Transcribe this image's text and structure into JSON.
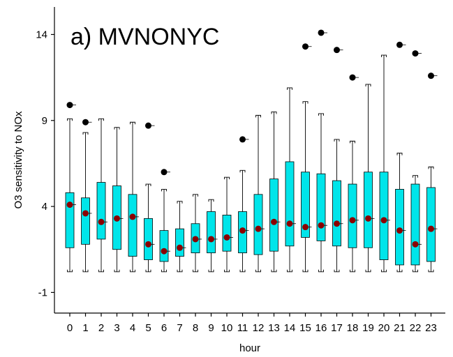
{
  "chart_data": {
    "type": "box",
    "title": "a) MVNONYC",
    "xlabel": "hour",
    "ylabel": "O3 sensitivity to NOx",
    "ylim": [
      -2.2,
      15.6
    ],
    "yticks": [
      -1,
      4,
      9,
      14
    ],
    "categories": [
      "0",
      "1",
      "2",
      "3",
      "4",
      "5",
      "6",
      "7",
      "8",
      "9",
      "10",
      "11",
      "12",
      "13",
      "14",
      "15",
      "16",
      "17",
      "18",
      "19",
      "20",
      "21",
      "22",
      "23"
    ],
    "whisker_low": [
      0.2,
      0.2,
      0.2,
      0.2,
      0.2,
      0.2,
      0.2,
      0.2,
      0.2,
      0.2,
      0.2,
      0.2,
      0.2,
      0.2,
      0.2,
      0.2,
      0.2,
      0.2,
      0.2,
      0.2,
      0.2,
      0.2,
      0.2,
      0.2
    ],
    "q1": [
      1.6,
      1.8,
      2.1,
      1.5,
      1.1,
      0.9,
      0.8,
      1.1,
      1.3,
      1.3,
      1.4,
      1.3,
      1.2,
      1.4,
      1.7,
      2.2,
      2.0,
      1.7,
      1.6,
      1.6,
      0.9,
      0.6,
      0.6,
      0.8
    ],
    "median": [
      4.1,
      3.6,
      3.1,
      3.3,
      3.4,
      1.8,
      1.4,
      1.6,
      2.1,
      2.1,
      2.2,
      2.6,
      2.7,
      3.1,
      3.0,
      2.8,
      2.9,
      3.0,
      3.2,
      3.3,
      3.2,
      2.6,
      1.8,
      2.7
    ],
    "q3": [
      4.8,
      4.5,
      5.4,
      5.2,
      4.7,
      3.3,
      2.6,
      2.7,
      3.0,
      3.7,
      3.5,
      3.7,
      4.7,
      5.6,
      6.6,
      6.0,
      5.9,
      5.5,
      5.3,
      6.0,
      6.0,
      5.0,
      5.3,
      5.1
    ],
    "whisker_high": [
      9.1,
      8.3,
      9.1,
      8.6,
      8.9,
      5.3,
      5.0,
      4.3,
      4.7,
      4.4,
      5.7,
      6.1,
      9.3,
      9.5,
      10.9,
      10.1,
      9.4,
      7.9,
      7.8,
      11.1,
      12.8,
      7.1,
      5.8,
      6.3
    ],
    "mean": [
      4.1,
      3.6,
      3.1,
      3.3,
      3.4,
      1.8,
      1.4,
      1.6,
      2.1,
      2.1,
      2.2,
      2.6,
      2.7,
      3.1,
      3.0,
      2.8,
      2.9,
      3.0,
      3.2,
      3.3,
      3.2,
      2.6,
      1.8,
      2.7
    ],
    "outliers": [
      {
        "hour": "0",
        "value": 9.9
      },
      {
        "hour": "1",
        "value": 8.9
      },
      {
        "hour": "5",
        "value": 8.7
      },
      {
        "hour": "6",
        "value": 6.0
      },
      {
        "hour": "11",
        "value": 7.9
      },
      {
        "hour": "15",
        "value": 13.3
      },
      {
        "hour": "16",
        "value": 14.1
      },
      {
        "hour": "17",
        "value": 13.1
      },
      {
        "hour": "18",
        "value": 11.5
      },
      {
        "hour": "21",
        "value": 13.4
      },
      {
        "hour": "22",
        "value": 12.9
      },
      {
        "hour": "23",
        "value": 11.6
      }
    ],
    "colors": {
      "box_fill": "#00e5ea",
      "box_stroke": "#000000",
      "mean_marker": "#8b0000",
      "outlier_marker": "#000000"
    },
    "grid": false,
    "legend": "none"
  }
}
